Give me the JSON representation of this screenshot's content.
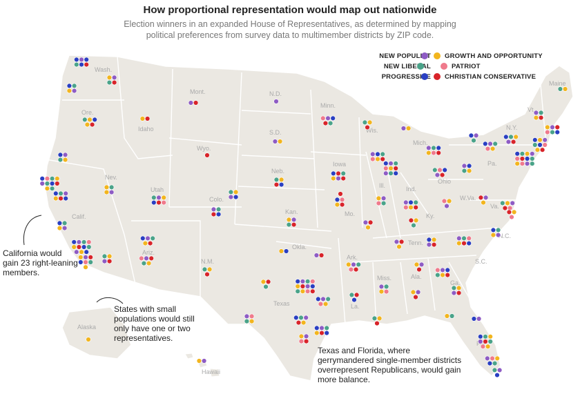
{
  "header": {
    "title": "How proportional representation would map out nationwide",
    "subtitle": "Election winners in an expanded House of Representatives, as determined by mapping political preferences from survey data to multimember districts by ZIP code."
  },
  "legend": {
    "new_populist": {
      "label": "NEW POPULIST",
      "color": "#8e5cc4"
    },
    "new_liberal": {
      "label": "NEW LIBERAL",
      "color": "#4aa389"
    },
    "progressive": {
      "label": "PROGRESSIVE",
      "color": "#2a3fc2"
    },
    "growth": {
      "label": "GROWTH AND OPPORTUNITY",
      "color": "#f2b51e"
    },
    "patriot": {
      "label": "PATRIOT",
      "color": "#ef7a8c"
    },
    "christian": {
      "label": "CHRISTIAN CONSERVATIVE",
      "color": "#d8242a"
    }
  },
  "state_labels": [
    "Wash.",
    "Ore.",
    "Idaho",
    "Mont.",
    "Wyo.",
    "N.D.",
    "S.D.",
    "Minn.",
    "Wis.",
    "Nev.",
    "Utah",
    "Colo.",
    "Neb.",
    "Iowa",
    "Ill.",
    "Ind.",
    "Mich.",
    "Ohio",
    "Pa.",
    "N.Y.",
    "Vt.",
    "Maine",
    "Calif.",
    "Ariz.",
    "N.M.",
    "Kan.",
    "Mo.",
    "Okla.",
    "Ark.",
    "Tenn.",
    "Ky.",
    "W.Va.",
    "Va.",
    "N.C.",
    "S.C.",
    "Ga.",
    "Ala.",
    "Miss.",
    "La.",
    "Texas",
    "Fla.",
    "Alaska",
    "Hawaii"
  ],
  "annotations": {
    "california": "California would gain 23 right-leaning members.",
    "small_states": "States with small populations would still only have one or two representatives.",
    "texas_florida": "Texas and Florida, where gerrymandered single-member districts overrepresent Republicans, would gain more balance."
  }
}
